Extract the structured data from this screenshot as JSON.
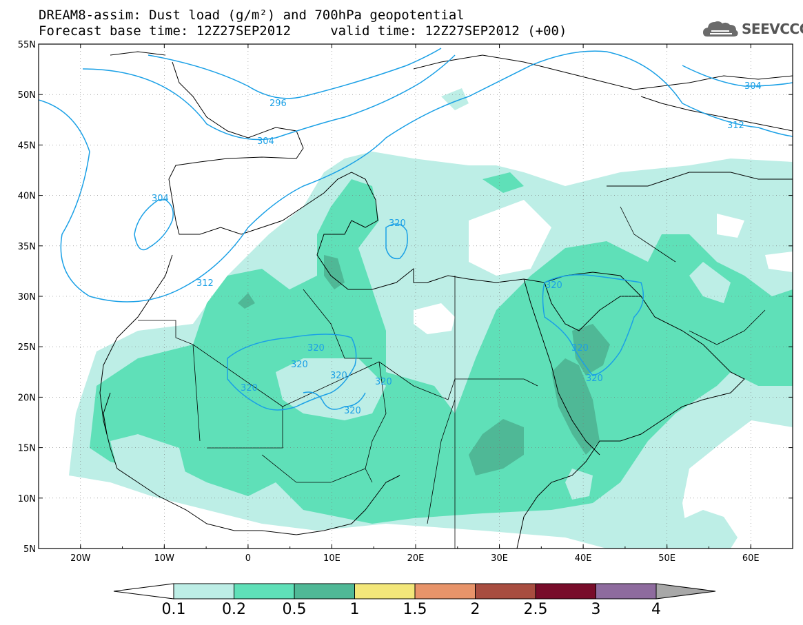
{
  "header": {
    "title_line1": "DREAM8-assim: Dust load (g/m²) and 700hPa geopotential",
    "title_line2": "Forecast base time: 12Z27SEP2012     valid time: 12Z27SEP2012 (+00)",
    "logo_text": "SEEVCCC",
    "logo_icon": "cloud-icon"
  },
  "axes": {
    "lat_labels": [
      "55N",
      "50N",
      "45N",
      "40N",
      "35N",
      "30N",
      "25N",
      "20N",
      "15N",
      "10N",
      "5N"
    ],
    "lon_labels": [
      "20W",
      "10W",
      "0",
      "10E",
      "20E",
      "30E",
      "40E",
      "50E",
      "60E"
    ]
  },
  "contours": {
    "labels": [
      "296",
      "304",
      "304",
      "304",
      "312",
      "312",
      "312",
      "320",
      "320",
      "320",
      "320",
      "320",
      "320",
      "320",
      "320",
      "320",
      "320",
      "320"
    ]
  },
  "colorbar": {
    "levels": [
      "0.1",
      "0.2",
      "0.5",
      "1",
      "1.5",
      "2",
      "2.5",
      "3",
      "4"
    ],
    "colors": [
      "#ffffff",
      "#bdeee6",
      "#5fe0b8",
      "#4fb896",
      "#f3e77a",
      "#e8946a",
      "#a84d40",
      "#780c2a",
      "#8e6b9e",
      "#a8a8a8"
    ]
  },
  "chart_data": {
    "type": "heatmap",
    "title": "DREAM8-assim: Dust load (g/m²) and 700hPa geopotential",
    "xlabel": "",
    "ylabel": "",
    "xlim": [
      -25,
      65
    ],
    "ylim": [
      5,
      55
    ],
    "colorbar_levels": [
      0.1,
      0.2,
      0.5,
      1,
      1.5,
      2,
      2.5,
      3,
      4
    ],
    "contour_levels": [
      296,
      304,
      312,
      320
    ]
  }
}
